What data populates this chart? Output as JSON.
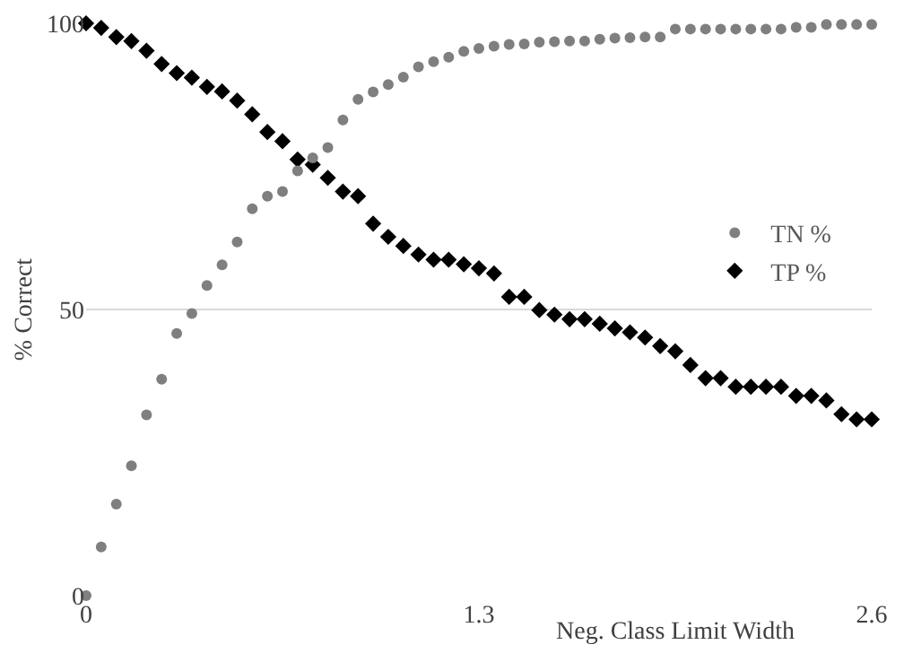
{
  "chart_data": {
    "type": "scatter",
    "xlabel": "Neg. Class Limit Width",
    "ylabel": "% Correct",
    "x": [
      0,
      0.05,
      0.1,
      0.15,
      0.2,
      0.25,
      0.3,
      0.35,
      0.4,
      0.45,
      0.5,
      0.55,
      0.6,
      0.65,
      0.7,
      0.75,
      0.8,
      0.85,
      0.9,
      0.95,
      1,
      1.05,
      1.1,
      1.15,
      1.2,
      1.25,
      1.3,
      1.35,
      1.4,
      1.45,
      1.5,
      1.55,
      1.6,
      1.65,
      1.7,
      1.75,
      1.8,
      1.85,
      1.9,
      1.95,
      2,
      2.05,
      2.1,
      2.15,
      2.2,
      2.25,
      2.3,
      2.35,
      2.4,
      2.45,
      2.5,
      2.55,
      2.6
    ],
    "series": [
      {
        "name": "TN %",
        "color": "#7f7f7f",
        "marker": "circle",
        "values": [
          0,
          8.5,
          16,
          22.7,
          31.6,
          37.8,
          45.8,
          49.3,
          54.2,
          57.8,
          61.8,
          67.6,
          69.8,
          70.6,
          74.2,
          76.5,
          78.3,
          83.1,
          86.7,
          88,
          89.3,
          90.6,
          92.4,
          93.3,
          94.1,
          95.1,
          95.6,
          96,
          96.3,
          96.4,
          96.7,
          96.8,
          96.9,
          96.9,
          97.2,
          97.4,
          97.5,
          97.6,
          97.6,
          99,
          99,
          99,
          99,
          99,
          99,
          99,
          99,
          99.3,
          99.3,
          99.8,
          99.8,
          99.8,
          99.8
        ]
      },
      {
        "name": "TP %",
        "color": "#000000",
        "marker": "diamond",
        "values": [
          100,
          99.2,
          97.6,
          96.9,
          95.2,
          92.9,
          91.3,
          90.5,
          88.9,
          88.1,
          86.5,
          84.1,
          81,
          79.4,
          76.2,
          75.3,
          73,
          70.6,
          69.8,
          65,
          62.7,
          61.1,
          59.6,
          58.7,
          58.7,
          57.9,
          57.2,
          56.3,
          52.2,
          52.2,
          49.9,
          49.1,
          48.3,
          48.3,
          47.5,
          46.7,
          46,
          45.1,
          43.6,
          42.7,
          40.3,
          38,
          38,
          36.5,
          36.5,
          36.5,
          36.5,
          34.9,
          34.9,
          34.1,
          31.7,
          30.8,
          30.8
        ]
      }
    ],
    "xlim": [
      0,
      2.6
    ],
    "xticks": [
      0,
      1.3,
      2.6
    ],
    "ylim": [
      0,
      100
    ],
    "yticks": [
      0,
      50,
      100
    ],
    "grid": "y",
    "legend": "right"
  }
}
